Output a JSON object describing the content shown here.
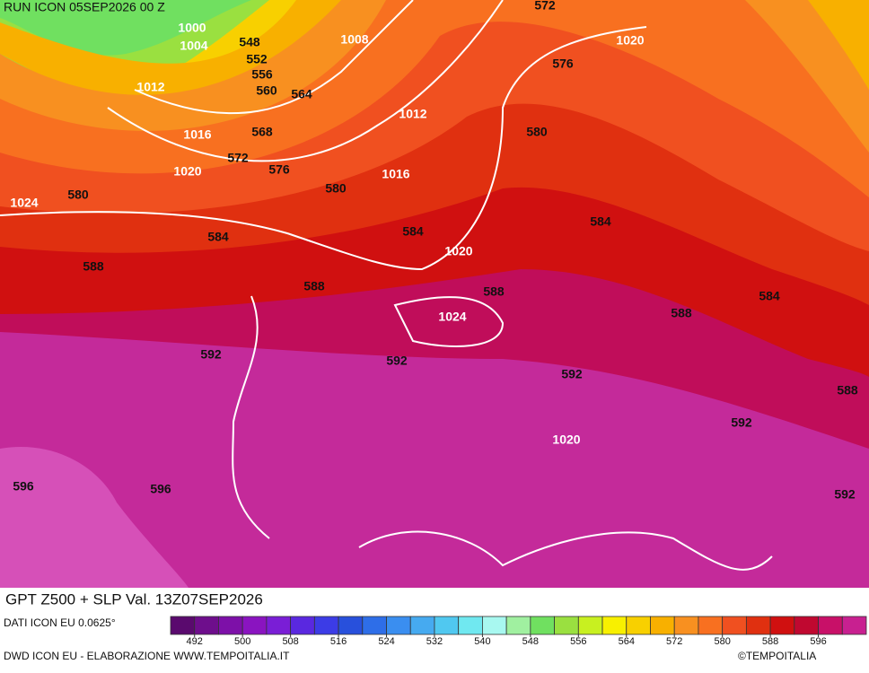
{
  "header": {
    "run": "RUN ICON 05SEP2026 00 Z"
  },
  "map": {
    "geopotential_labels": [
      "548",
      "552",
      "556",
      "560",
      "564",
      "568",
      "572",
      "576",
      "580",
      "580",
      "584",
      "588",
      "588",
      "592",
      "592",
      "584",
      "580",
      "576",
      "572",
      "584",
      "588",
      "588",
      "584",
      "592",
      "592",
      "588",
      "592",
      "596",
      "596"
    ],
    "pressure_labels": [
      "1000",
      "1004",
      "1008",
      "1012",
      "1012",
      "1016",
      "1016",
      "1020",
      "1020",
      "1020",
      "1020",
      "1024",
      "1024"
    ]
  },
  "footer": {
    "title": "GPT Z500 + SLP Val. 13Z07SEP2026",
    "source": "DATI ICON EU 0.0625°",
    "credit": "DWD ICON EU - ELABORAZIONE WWW.TEMPOITALIA.IT",
    "copyright": "©TEMPOITALIA"
  },
  "colorbar": {
    "lim": [
      488,
      604
    ],
    "ticks": [
      492,
      500,
      508,
      516,
      524,
      532,
      540,
      548,
      556,
      564,
      572,
      580,
      588,
      596
    ],
    "colors": [
      "#5a0a6e",
      "#6e0e8c",
      "#7d10a8",
      "#8a14c0",
      "#7a1ed6",
      "#5a28e0",
      "#3c3ce6",
      "#2850dc",
      "#2e6ee8",
      "#3a8ef0",
      "#46aaf0",
      "#50c8f0",
      "#70e8f0",
      "#a8f8f0",
      "#a0f0a0",
      "#70e060",
      "#9ae040",
      "#c8f020",
      "#f8f000",
      "#f8d000",
      "#f8b000",
      "#f89020",
      "#f87020",
      "#f05020",
      "#e03010",
      "#d01010",
      "#c00830",
      "#c81068",
      "#c82090"
    ]
  }
}
